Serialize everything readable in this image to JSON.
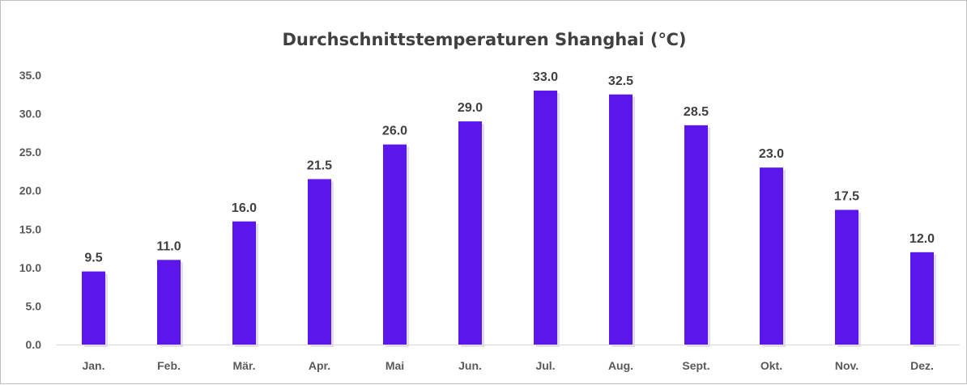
{
  "chart_data": {
    "type": "bar",
    "title": "Durchschnittstemperaturen Shanghai (℃)",
    "categories": [
      "Jan.",
      "Feb.",
      "Mär.",
      "Apr.",
      "Mai",
      "Jun.",
      "Jul.",
      "Aug.",
      "Sept.",
      "Okt.",
      "Nov.",
      "Dez."
    ],
    "values": [
      9.5,
      11.0,
      16.0,
      21.5,
      26.0,
      29.0,
      33.0,
      32.5,
      28.5,
      23.0,
      17.5,
      12.0
    ],
    "data_labels": [
      "9.5",
      "11.0",
      "16.0",
      "21.5",
      "26.0",
      "29.0",
      "33.0",
      "32.5",
      "28.5",
      "23.0",
      "17.5",
      "12.0"
    ],
    "y_ticks": [
      "0.0",
      "5.0",
      "10.0",
      "15.0",
      "20.0",
      "25.0",
      "30.0",
      "35.0"
    ],
    "ylim": [
      0,
      35
    ],
    "xlabel": "",
    "ylabel": "",
    "grid": false,
    "legend": "none",
    "bar_color": "#5B17EB",
    "bar_shadow_color": "#C9C3D9",
    "axis_color": "#D9D9D9"
  }
}
